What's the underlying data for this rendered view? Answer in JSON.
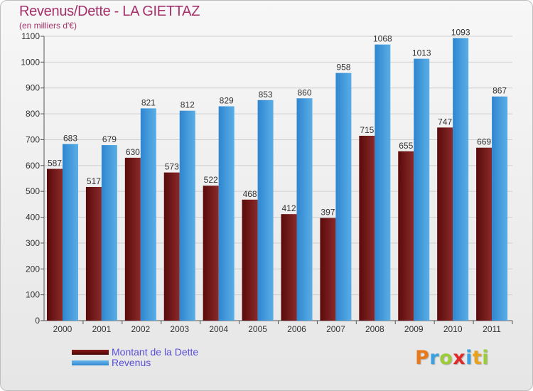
{
  "title": "Revenus/Dette - LA GIETTAZ",
  "subtitle": "(en milliers d'€)",
  "logo": {
    "letters": [
      "P",
      "r",
      "o",
      "x",
      "i",
      "t",
      "i"
    ],
    "colors": [
      "#e87a1e",
      "#3aa1e0",
      "#9ccc3a",
      "#e02a2a",
      "#3aa1e0",
      "#e8a21e",
      "#9ccc3a"
    ]
  },
  "chart_data": {
    "type": "bar",
    "categories": [
      "2000",
      "2001",
      "2002",
      "2003",
      "2004",
      "2005",
      "2006",
      "2007",
      "2008",
      "2009",
      "2010",
      "2011"
    ],
    "series": [
      {
        "name": "Montant de la Dette",
        "color": "#6b0f0f",
        "values": [
          587,
          517,
          630,
          573,
          522,
          468,
          412,
          397,
          715,
          655,
          747,
          669
        ]
      },
      {
        "name": "Revenus",
        "color": "#3a93d8",
        "values": [
          683,
          679,
          821,
          812,
          829,
          853,
          860,
          958,
          1068,
          1013,
          1093,
          867
        ]
      }
    ],
    "ylim": [
      0,
      1100
    ],
    "yticks": [
      0,
      100,
      200,
      300,
      400,
      500,
      600,
      700,
      800,
      900,
      1000,
      1100
    ],
    "grid": true,
    "legend": "bottom-left"
  }
}
